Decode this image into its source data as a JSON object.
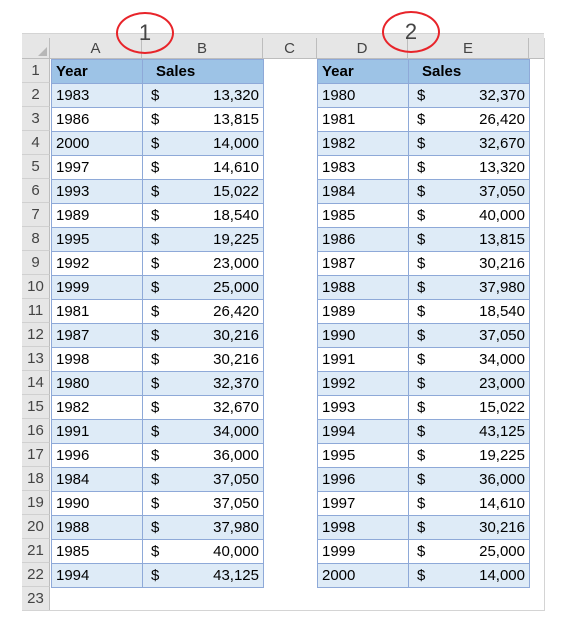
{
  "callouts": [
    "1",
    "2"
  ],
  "columns": [
    "A",
    "B",
    "C",
    "D",
    "E"
  ],
  "row_numbers": [
    "1",
    "2",
    "3",
    "4",
    "5",
    "6",
    "7",
    "8",
    "9",
    "10",
    "11",
    "12",
    "13",
    "14",
    "15",
    "16",
    "17",
    "18",
    "19",
    "20",
    "21",
    "22",
    "23"
  ],
  "headers": {
    "year": "Year",
    "sales": "Sales"
  },
  "currency": "$",
  "table1": [
    {
      "year": "1983",
      "sales": "13,320"
    },
    {
      "year": "1986",
      "sales": "13,815"
    },
    {
      "year": "2000",
      "sales": "14,000"
    },
    {
      "year": "1997",
      "sales": "14,610"
    },
    {
      "year": "1993",
      "sales": "15,022"
    },
    {
      "year": "1989",
      "sales": "18,540"
    },
    {
      "year": "1995",
      "sales": "19,225"
    },
    {
      "year": "1992",
      "sales": "23,000"
    },
    {
      "year": "1999",
      "sales": "25,000"
    },
    {
      "year": "1981",
      "sales": "26,420"
    },
    {
      "year": "1987",
      "sales": "30,216"
    },
    {
      "year": "1998",
      "sales": "30,216"
    },
    {
      "year": "1980",
      "sales": "32,370"
    },
    {
      "year": "1982",
      "sales": "32,670"
    },
    {
      "year": "1991",
      "sales": "34,000"
    },
    {
      "year": "1996",
      "sales": "36,000"
    },
    {
      "year": "1984",
      "sales": "37,050"
    },
    {
      "year": "1990",
      "sales": "37,050"
    },
    {
      "year": "1988",
      "sales": "37,980"
    },
    {
      "year": "1985",
      "sales": "40,000"
    },
    {
      "year": "1994",
      "sales": "43,125"
    }
  ],
  "table2": [
    {
      "year": "1980",
      "sales": "32,370"
    },
    {
      "year": "1981",
      "sales": "26,420"
    },
    {
      "year": "1982",
      "sales": "32,670"
    },
    {
      "year": "1983",
      "sales": "13,320"
    },
    {
      "year": "1984",
      "sales": "37,050"
    },
    {
      "year": "1985",
      "sales": "40,000"
    },
    {
      "year": "1986",
      "sales": "13,815"
    },
    {
      "year": "1987",
      "sales": "30,216"
    },
    {
      "year": "1988",
      "sales": "37,980"
    },
    {
      "year": "1989",
      "sales": "18,540"
    },
    {
      "year": "1990",
      "sales": "37,050"
    },
    {
      "year": "1991",
      "sales": "34,000"
    },
    {
      "year": "1992",
      "sales": "23,000"
    },
    {
      "year": "1993",
      "sales": "15,022"
    },
    {
      "year": "1994",
      "sales": "43,125"
    },
    {
      "year": "1995",
      "sales": "19,225"
    },
    {
      "year": "1996",
      "sales": "36,000"
    },
    {
      "year": "1997",
      "sales": "14,610"
    },
    {
      "year": "1998",
      "sales": "30,216"
    },
    {
      "year": "1999",
      "sales": "25,000"
    },
    {
      "year": "2000",
      "sales": "14,000"
    }
  ],
  "colors": {
    "header_fill": "#9dc3e6",
    "band_fill": "#deebf7",
    "border": "#8ea9d8",
    "callout": "#e8242a"
  }
}
